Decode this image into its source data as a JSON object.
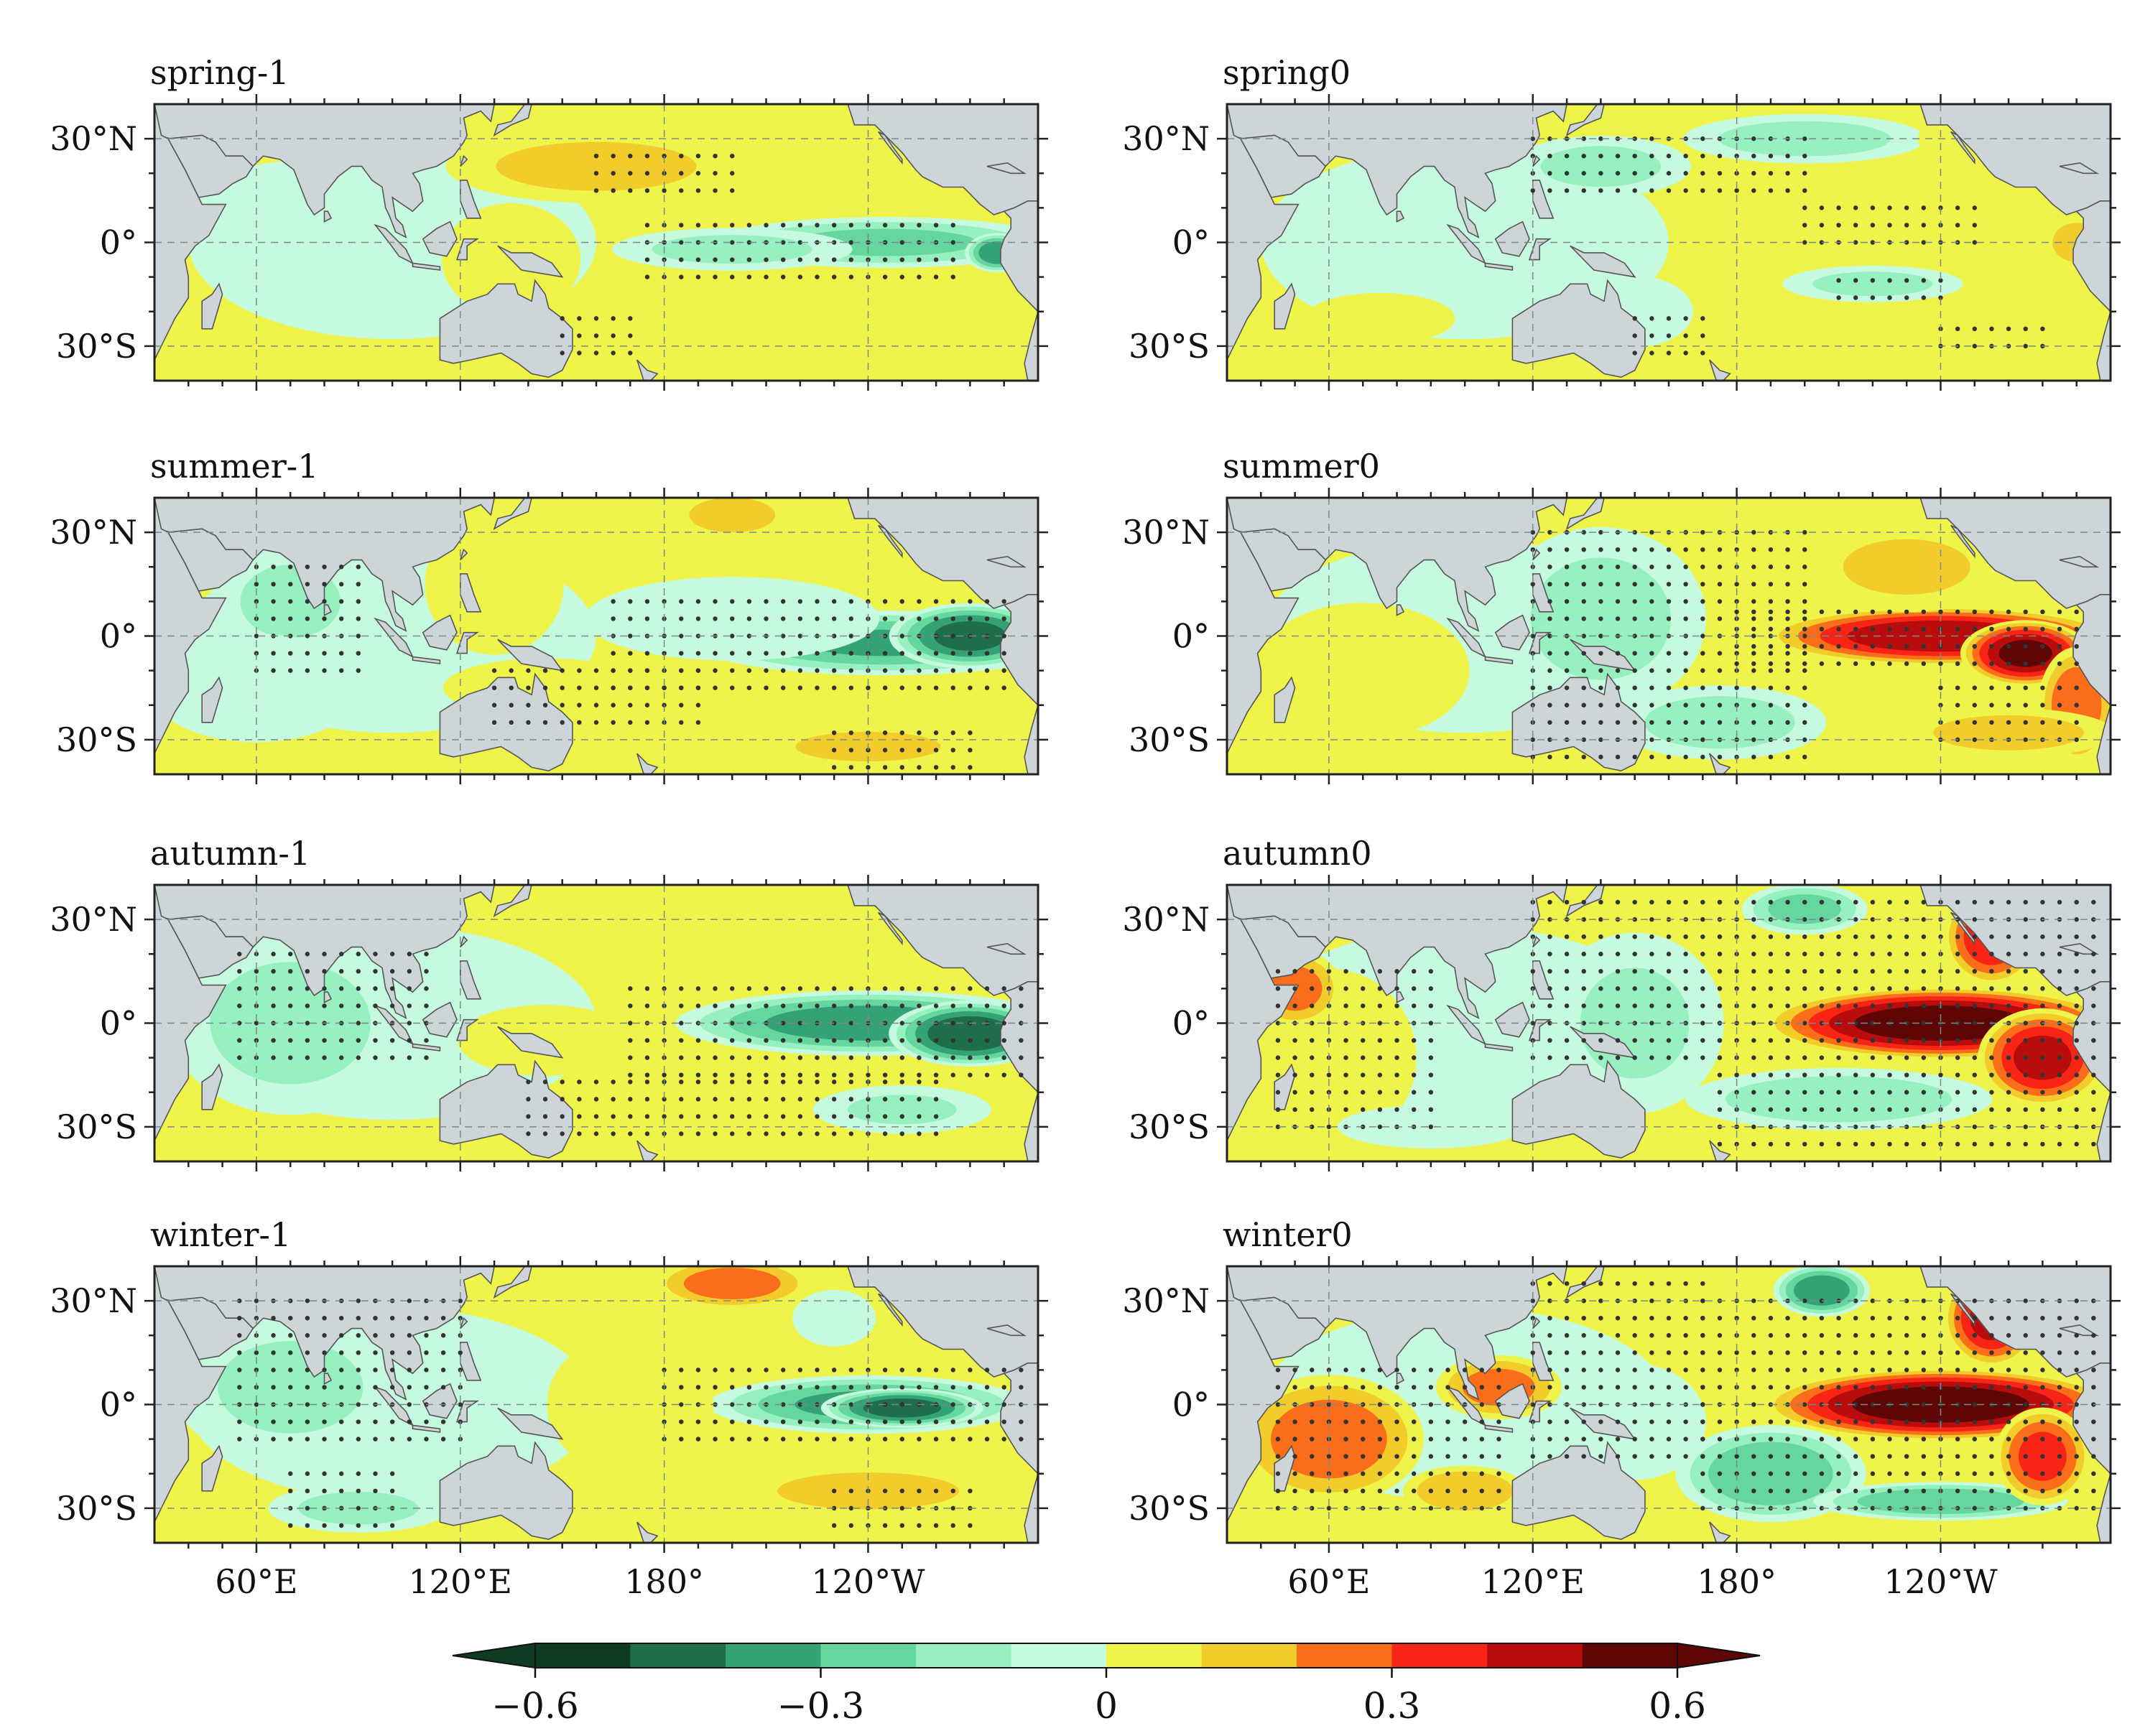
{
  "figure": {
    "panels": [
      {
        "title": "spring-1",
        "pattern": "spring_m1"
      },
      {
        "title": "spring0",
        "pattern": "spring_0"
      },
      {
        "title": "summer-1",
        "pattern": "summer_m1"
      },
      {
        "title": "summer0",
        "pattern": "summer_0"
      },
      {
        "title": "autumn-1",
        "pattern": "autumn_m1"
      },
      {
        "title": "autumn0",
        "pattern": "autumn_0"
      },
      {
        "title": "winter-1",
        "pattern": "winter_m1"
      },
      {
        "title": "winter0",
        "pattern": "winter_0"
      }
    ],
    "lat_ticks": [
      {
        "value": 30,
        "label": "30°N"
      },
      {
        "value": 0,
        "label": "0°"
      },
      {
        "value": -30,
        "label": "30°S"
      }
    ],
    "lon_ticks": [
      {
        "value": 60,
        "label": "60°E"
      },
      {
        "value": 120,
        "label": "120°E"
      },
      {
        "value": 180,
        "label": "180°"
      },
      {
        "value": 240,
        "label": "120°W"
      }
    ],
    "extent": {
      "lon": [
        30,
        290
      ],
      "lat": [
        -40,
        40
      ]
    },
    "colorbar": {
      "levels": [
        -0.6,
        -0.5,
        -0.4,
        -0.3,
        -0.2,
        -0.1,
        0,
        0.1,
        0.2,
        0.3,
        0.4,
        0.5,
        0.6
      ],
      "colors": [
        "#0f3b24",
        "#1f6e4b",
        "#34a274",
        "#66d69f",
        "#96f0bf",
        "#c6fadf",
        "#eef44a",
        "#f2cc2a",
        "#fa6d1a",
        "#f82517",
        "#b90d0d",
        "#5e0505"
      ],
      "extend": "both",
      "tick_labels": [
        {
          "value": -0.6,
          "label": "−0.6"
        },
        {
          "value": -0.3,
          "label": "−0.3"
        },
        {
          "value": 0,
          "label": "0"
        },
        {
          "value": 0.3,
          "label": "0.3"
        },
        {
          "value": 0.6,
          "label": "0.6"
        }
      ]
    },
    "land_color": "#cdd5d9",
    "stipple_note_color": "#333333"
  }
}
